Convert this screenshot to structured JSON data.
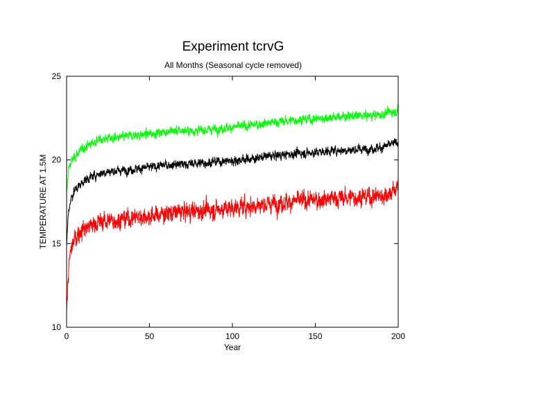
{
  "chart_data": {
    "type": "line",
    "title": "Experiment tcrvG",
    "subtitle": "All Months (Seasonal cycle removed)",
    "xlabel": "Year",
    "ylabel": "TEMPERATURE AT 1.5M",
    "xlim": [
      0,
      200
    ],
    "ylim": [
      10,
      25
    ],
    "xticks": [
      "0",
      "50",
      "100",
      "150",
      "200"
    ],
    "yticks": [
      "10",
      "15",
      "20",
      "25"
    ],
    "grid": false,
    "legend": "none",
    "series": [
      {
        "color": "#00ff00",
        "x": [
          0,
          1,
          2,
          3,
          5,
          8,
          10,
          15,
          20,
          25,
          30,
          40,
          50,
          60,
          70,
          80,
          90,
          100,
          110,
          120,
          130,
          140,
          150,
          160,
          170,
          180,
          190,
          195,
          200
        ],
        "y": [
          17.8,
          19.3,
          19.7,
          19.9,
          20.2,
          20.5,
          20.7,
          21.0,
          21.2,
          21.3,
          21.3,
          21.45,
          21.55,
          21.7,
          21.75,
          21.75,
          21.85,
          21.95,
          22.05,
          22.2,
          22.3,
          22.4,
          22.45,
          22.55,
          22.6,
          22.65,
          22.7,
          22.85,
          22.95
        ]
      },
      {
        "color": "#000000",
        "x": [
          0,
          1,
          2,
          3,
          5,
          8,
          10,
          15,
          20,
          25,
          30,
          40,
          50,
          60,
          70,
          80,
          90,
          100,
          110,
          120,
          130,
          140,
          150,
          160,
          170,
          180,
          190,
          195,
          200
        ],
        "y": [
          15.0,
          16.7,
          17.4,
          17.8,
          18.2,
          18.5,
          18.7,
          19.0,
          19.2,
          19.3,
          19.35,
          19.45,
          19.55,
          19.7,
          19.75,
          19.8,
          19.9,
          19.95,
          20.05,
          20.2,
          20.3,
          20.4,
          20.45,
          20.55,
          20.6,
          20.65,
          20.75,
          20.9,
          21.1
        ]
      },
      {
        "color": "#ff0000",
        "x": [
          0,
          1,
          2,
          3,
          5,
          8,
          10,
          15,
          20,
          25,
          30,
          40,
          50,
          60,
          70,
          80,
          90,
          100,
          110,
          120,
          130,
          140,
          150,
          160,
          170,
          180,
          190,
          195,
          200
        ],
        "y": [
          11.0,
          13.0,
          14.2,
          14.8,
          15.3,
          15.7,
          15.9,
          16.1,
          16.3,
          16.35,
          16.4,
          16.55,
          16.65,
          16.8,
          16.9,
          16.95,
          17.05,
          17.15,
          17.25,
          17.35,
          17.45,
          17.55,
          17.6,
          17.7,
          17.75,
          17.8,
          17.85,
          18.0,
          18.4
        ]
      }
    ]
  }
}
